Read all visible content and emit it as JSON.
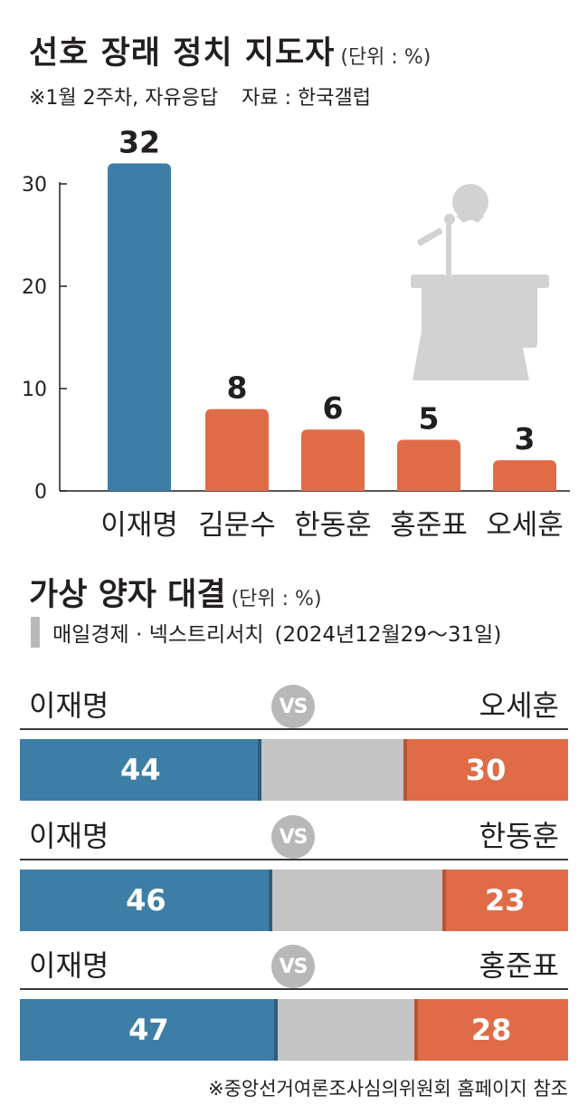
{
  "header": {
    "title": "선호 장래 정치 지도자",
    "unit": "(단위 : %)",
    "note": "※1월 2주차, 자유응답",
    "source": "자료 : 한국갤럽"
  },
  "chart_data": [
    {
      "type": "bar",
      "title": "선호 장래 정치 지도자",
      "categories": [
        "이재명",
        "김문수",
        "한동훈",
        "홍준표",
        "오세훈"
      ],
      "values": [
        32,
        8,
        6,
        5,
        3
      ],
      "yticks": [
        0,
        10,
        20,
        30
      ],
      "ylim": [
        0,
        30
      ],
      "colors": [
        "#3d7ea6",
        "#e06c47",
        "#e06c47",
        "#e06c47",
        "#e06c47"
      ]
    },
    {
      "type": "bar",
      "title": "가상 양자 대결",
      "stacked": true,
      "orientation": "horizontal",
      "matchups": [
        {
          "left": "이재명",
          "right": "오세훈",
          "left_value": 44,
          "right_value": 30
        },
        {
          "left": "이재명",
          "right": "한동훈",
          "left_value": 46,
          "right_value": 23
        },
        {
          "left": "이재명",
          "right": "홍준표",
          "left_value": 47,
          "right_value": 28
        }
      ]
    }
  ],
  "section2": {
    "title": "가상 양자 대결",
    "unit": "(단위 : %)",
    "source": "매일경제 · 넥스트리서치",
    "date": "(2024년12월29～31일)",
    "vs_label": "VS"
  },
  "footnote": "※중앙선거여론조사심의위원회 홈페이지 참조",
  "icons": {
    "podium": "podium-speaker-icon"
  },
  "colors": {
    "blue": "#3d7ea6",
    "orange": "#e06c47",
    "neutral": "#c4c4c4",
    "icon_gray": "#d2d2d2"
  }
}
